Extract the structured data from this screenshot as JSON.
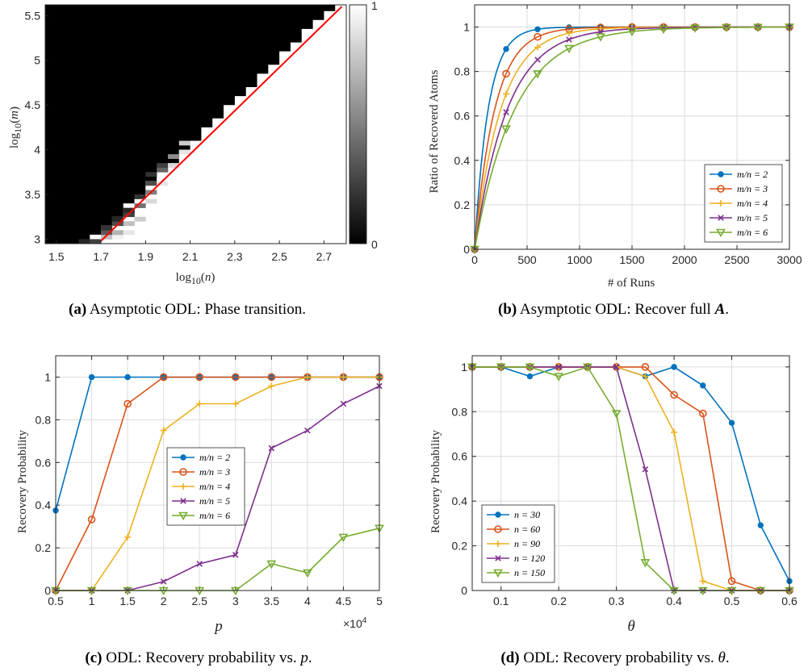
{
  "colors": {
    "series": [
      "#0072BD",
      "#D95319",
      "#EDB120",
      "#7E2F8E",
      "#77AC30"
    ],
    "transition_line": "#FF0000",
    "grid": "#dcdcdc",
    "axis": "#262626"
  },
  "chart_data": [
    {
      "id": "a",
      "type": "heatmap",
      "caption_tag": "(a)",
      "caption_text": "Asymptotic ODL: Phase transition.",
      "xlabel": "log10(n)",
      "ylabel": "log10(m)",
      "xlim": [
        1.45,
        2.8
      ],
      "ylim": [
        2.95,
        5.62
      ],
      "xticks": [
        "1.5",
        "1.7",
        "1.9",
        "2.1",
        "2.3",
        "2.5",
        "2.7"
      ],
      "yticks": [
        "3",
        "3.5",
        "4",
        "4.5",
        "5",
        "5.5"
      ],
      "colorbar_ticks": [
        "0",
        "1"
      ],
      "colormap": "gray",
      "transition_line": {
        "x": [
          1.7,
          2.78
        ],
        "y": [
          2.98,
          5.6
        ]
      },
      "cell_width_log10": 0.05,
      "cell_height_log10": 0.05,
      "boundary_cells": [
        {
          "x": 1.6,
          "y": 2.95,
          "value": 0.15
        },
        {
          "x": 1.65,
          "y": 2.95,
          "value": 0.25
        },
        {
          "x": 1.7,
          "y": 3.0,
          "value": 0.75
        },
        {
          "x": 1.7,
          "y": 3.05,
          "value": 0.35
        },
        {
          "x": 1.7,
          "y": 3.1,
          "value": 0.2
        },
        {
          "x": 1.75,
          "y": 3.0,
          "value": 0.95
        },
        {
          "x": 1.75,
          "y": 3.05,
          "value": 0.7
        },
        {
          "x": 1.75,
          "y": 3.15,
          "value": 0.3
        },
        {
          "x": 1.75,
          "y": 3.2,
          "value": 0.15
        },
        {
          "x": 1.8,
          "y": 3.05,
          "value": 0.9
        },
        {
          "x": 1.8,
          "y": 3.15,
          "value": 0.75
        },
        {
          "x": 1.8,
          "y": 3.25,
          "value": 0.25
        },
        {
          "x": 1.8,
          "y": 3.3,
          "value": 0.15
        },
        {
          "x": 1.85,
          "y": 3.2,
          "value": 0.8
        },
        {
          "x": 1.85,
          "y": 3.35,
          "value": 0.45
        },
        {
          "x": 1.85,
          "y": 3.45,
          "value": 0.2
        },
        {
          "x": 1.9,
          "y": 3.4,
          "value": 0.85
        },
        {
          "x": 1.9,
          "y": 3.5,
          "value": 0.5
        },
        {
          "x": 1.9,
          "y": 3.6,
          "value": 0.3
        },
        {
          "x": 1.9,
          "y": 3.7,
          "value": 0.2
        },
        {
          "x": 1.95,
          "y": 3.6,
          "value": 0.9
        },
        {
          "x": 1.95,
          "y": 3.75,
          "value": 0.4
        },
        {
          "x": 1.95,
          "y": 3.8,
          "value": 0.25
        },
        {
          "x": 2.0,
          "y": 3.8,
          "value": 0.85
        },
        {
          "x": 2.0,
          "y": 3.9,
          "value": 0.55
        },
        {
          "x": 2.05,
          "y": 3.95,
          "value": 0.9
        },
        {
          "x": 2.05,
          "y": 4.05,
          "value": 0.8
        }
      ]
    },
    {
      "id": "b",
      "type": "line",
      "caption_tag": "(b)",
      "caption_text": "Asymptotic ODL: Recover full",
      "caption_math": "A",
      "caption_end": ".",
      "xlabel": "# of Runs",
      "ylabel": "Ratio of Recoverd Atoms",
      "xlim": [
        0,
        3000
      ],
      "ylim": [
        0,
        1.1
      ],
      "xticks": [
        "0",
        "500",
        "1000",
        "1500",
        "2000",
        "2500",
        "3000"
      ],
      "yticks": [
        "0",
        "0.2",
        "0.4",
        "0.6",
        "0.8",
        "1"
      ],
      "legend_position": "lower-right",
      "marker_x": [
        0,
        300,
        600,
        900,
        1200,
        1500,
        1800,
        2100,
        2400,
        2700,
        3000
      ],
      "series": [
        {
          "name": "m/n = 2",
          "rate": 0.0077,
          "marker": "dot",
          "values": [
            0,
            0.901,
            0.99,
            0.999,
            1,
            1,
            1,
            1,
            1,
            1,
            1
          ]
        },
        {
          "name": "m/n = 3",
          "rate": 0.0052,
          "marker": "circle",
          "values": [
            0,
            0.79,
            0.956,
            0.991,
            0.998,
            1,
            1,
            1,
            1,
            1,
            1
          ]
        },
        {
          "name": "m/n = 4",
          "rate": 0.004,
          "marker": "plus",
          "values": [
            0,
            0.699,
            0.909,
            0.973,
            0.992,
            0.998,
            0.999,
            1,
            1,
            1,
            1
          ]
        },
        {
          "name": "m/n = 5",
          "rate": 0.0032,
          "marker": "x",
          "values": [
            0,
            0.617,
            0.853,
            0.944,
            0.978,
            0.992,
            0.997,
            0.999,
            1,
            1,
            1
          ]
        },
        {
          "name": "m/n = 6",
          "rate": 0.0026,
          "marker": "triangle",
          "values": [
            0,
            0.542,
            0.79,
            0.904,
            0.956,
            0.98,
            0.991,
            0.996,
            0.998,
            0.999,
            1
          ]
        }
      ]
    },
    {
      "id": "c",
      "type": "line",
      "caption_tag": "(c)",
      "caption_text": "ODL: Recovery probability vs.",
      "caption_math": "p",
      "caption_end": ".",
      "xlabel": "p",
      "ylabel": "Recovery Probability",
      "x_multiplier": "×10",
      "x_multiplier_exp": "4",
      "xlim": [
        0.5,
        5
      ],
      "ylim": [
        0,
        1.1
      ],
      "xticks": [
        "0.5",
        "1",
        "1.5",
        "2",
        "2.5",
        "3",
        "3.5",
        "4",
        "4.5",
        "5"
      ],
      "yticks": [
        "0",
        "0.2",
        "0.4",
        "0.6",
        "0.8",
        "1"
      ],
      "legend_position": "center",
      "x": [
        0.5,
        1,
        1.5,
        2,
        2.5,
        3,
        3.5,
        4,
        4.5,
        5
      ],
      "series": [
        {
          "name": "m/n = 2",
          "marker": "dot",
          "values": [
            0.375,
            1,
            1,
            1,
            1,
            1,
            1,
            1,
            1,
            1
          ]
        },
        {
          "name": "m/n = 3",
          "marker": "circle",
          "values": [
            0,
            0.333,
            0.875,
            1,
            1,
            1,
            1,
            1,
            1,
            1
          ]
        },
        {
          "name": "m/n = 4",
          "marker": "plus",
          "values": [
            0,
            0,
            0.25,
            0.75,
            0.875,
            0.875,
            0.958,
            1,
            1,
            1
          ]
        },
        {
          "name": "m/n = 5",
          "marker": "x",
          "values": [
            0,
            0,
            0,
            0.042,
            0.125,
            0.167,
            0.667,
            0.75,
            0.875,
            0.958
          ]
        },
        {
          "name": "m/n = 6",
          "marker": "triangle",
          "values": [
            0,
            0,
            0,
            0,
            0,
            0,
            0.125,
            0.083,
            0.25,
            0.292
          ]
        }
      ]
    },
    {
      "id": "d",
      "type": "line",
      "caption_tag": "(d)",
      "caption_text": "ODL: Recovery probability vs.",
      "caption_math": "θ",
      "caption_end": ".",
      "xlabel": "θ",
      "ylabel": "Recovery Probability",
      "xlim": [
        0.05,
        0.6
      ],
      "ylim": [
        0,
        1.05
      ],
      "xticks": [
        "0.1",
        "0.2",
        "0.3",
        "0.4",
        "0.5",
        "0.6"
      ],
      "yticks": [
        "0",
        "0.2",
        "0.4",
        "0.6",
        "0.8",
        "1"
      ],
      "legend_position": "lower-left",
      "x": [
        0.05,
        0.1,
        0.15,
        0.2,
        0.25,
        0.3,
        0.35,
        0.4,
        0.45,
        0.5,
        0.55,
        0.6
      ],
      "series": [
        {
          "name": "n = 30",
          "marker": "dot",
          "values": [
            1,
            1,
            0.958,
            1,
            1,
            1,
            0.958,
            1,
            0.917,
            0.75,
            0.292,
            0.042
          ]
        },
        {
          "name": "n = 60",
          "marker": "circle",
          "values": [
            1,
            1,
            1,
            1,
            1,
            1,
            1,
            0.875,
            0.792,
            0.042,
            0,
            0
          ]
        },
        {
          "name": "n = 90",
          "marker": "plus",
          "values": [
            1,
            1,
            1,
            1,
            1,
            1,
            0.958,
            0.708,
            0.042,
            0,
            0,
            0
          ]
        },
        {
          "name": "n = 120",
          "marker": "x",
          "values": [
            1,
            1,
            1,
            1,
            1,
            1,
            0.542,
            0,
            0,
            0,
            0,
            0
          ]
        },
        {
          "name": "n = 150",
          "marker": "triangle",
          "values": [
            1,
            1,
            1,
            0.958,
            1,
            0.792,
            0.125,
            0,
            0,
            0,
            0,
            0
          ]
        }
      ]
    }
  ]
}
